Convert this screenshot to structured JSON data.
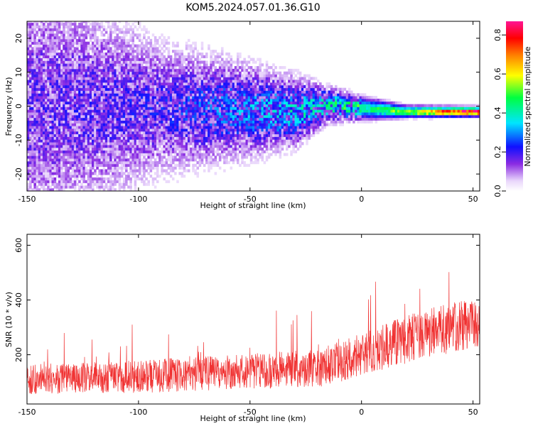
{
  "title": "KOM5.2024.057.01.36.G10",
  "colors": {
    "snr_line": "#f03232",
    "frame": "#000000"
  },
  "chart_data": [
    {
      "type": "heatmap",
      "xlabel": "Height of straight line (km)",
      "ylabel": "Frequency (Hz)",
      "xlim": [
        -150,
        53
      ],
      "ylim": [
        -25,
        25
      ],
      "x_ticks": [
        -150,
        -100,
        -50,
        0,
        50
      ],
      "y_ticks": [
        -20,
        -10,
        0,
        10,
        20
      ],
      "colorbar": {
        "label": "Normalized spectral amplitude",
        "range": [
          0.0,
          0.87
        ],
        "ticks": [
          "0.0",
          "0.2",
          "0.4",
          "0.6",
          "0.8"
        ],
        "colormap": "rainbow (white-violet-blue-cyan-green-yellow-red-pink)"
      },
      "description_series": [
        {
          "x": -150,
          "center_freq": 0,
          "spread": 25,
          "amplitude": 0.15
        },
        {
          "x": -90,
          "center_freq": -1,
          "spread": 12,
          "amplitude": 0.18
        },
        {
          "x": -30,
          "center_freq": -2,
          "spread": 6,
          "amplitude": 0.3
        },
        {
          "x": -15,
          "center_freq": 0,
          "spread": 3,
          "amplitude": 0.35
        },
        {
          "x": 0,
          "center_freq": -1,
          "spread": 2,
          "amplitude": 0.4
        },
        {
          "x": 20,
          "center_freq": -2,
          "spread": 1,
          "amplitude": 0.55
        },
        {
          "x": 50,
          "center_freq": -2,
          "spread": 0.8,
          "amplitude": 0.87
        }
      ]
    },
    {
      "type": "line",
      "xlabel": "Height of straight line (km)",
      "ylabel": "SNR (10 * v/v)",
      "xlim": [
        -150,
        53
      ],
      "ylim": [
        20,
        640
      ],
      "x_ticks": [
        -150,
        -100,
        -50,
        0,
        50
      ],
      "y_ticks": [
        200,
        400,
        600
      ],
      "series": [
        {
          "trend": [
            {
              "x": -150,
              "mean": 110,
              "noise": 55
            },
            {
              "x": -100,
              "mean": 120,
              "noise": 60
            },
            {
              "x": -50,
              "mean": 140,
              "noise": 65
            },
            {
              "x": -20,
              "mean": 150,
              "noise": 70
            },
            {
              "x": 0,
              "mean": 200,
              "noise": 80
            },
            {
              "x": 25,
              "mean": 270,
              "noise": 90
            },
            {
              "x": 53,
              "mean": 320,
              "noise": 95
            }
          ]
        }
      ]
    }
  ]
}
